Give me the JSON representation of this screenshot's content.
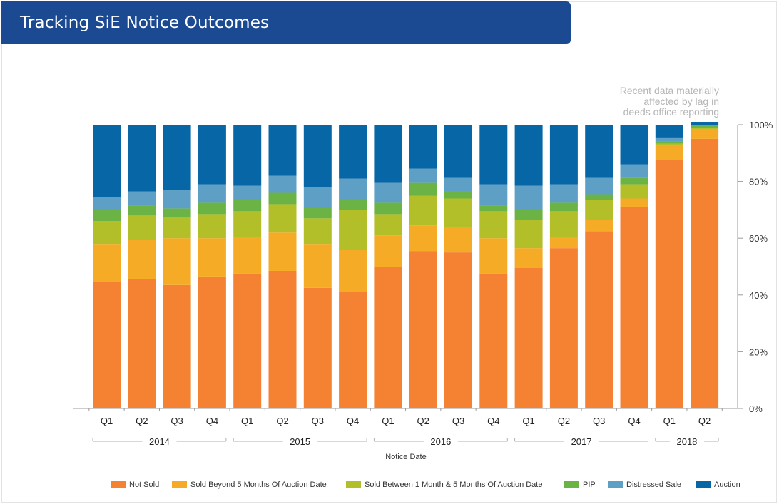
{
  "title": "Tracking SiE Notice Outcomes",
  "note_lines": [
    "Recent data materially",
    "affected by lag in",
    "deeds office reporting"
  ],
  "chart_data": {
    "type": "bar",
    "stacked": true,
    "title": "",
    "xlabel": "Notice Date",
    "ylabel": "",
    "ylim": [
      0,
      100
    ],
    "y_ticks": [
      "0%",
      "20%",
      "40%",
      "60%",
      "80%",
      "100%"
    ],
    "y_axis_side": "right",
    "categories": [
      "Q1",
      "Q2",
      "Q3",
      "Q4",
      "Q1",
      "Q2",
      "Q3",
      "Q4",
      "Q1",
      "Q2",
      "Q3",
      "Q4",
      "Q1",
      "Q2",
      "Q3",
      "Q4",
      "Q1",
      "Q2"
    ],
    "year_groups": [
      {
        "label": "2014",
        "count": 4
      },
      {
        "label": "2015",
        "count": 4
      },
      {
        "label": "2016",
        "count": 4
      },
      {
        "label": "2017",
        "count": 4
      },
      {
        "label": "2018",
        "count": 2
      }
    ],
    "series": [
      {
        "name": "Not Sold",
        "color": "#f58233",
        "values": [
          44.5,
          45.5,
          43.5,
          46.5,
          47.5,
          48.5,
          42.5,
          41,
          50,
          55.5,
          55,
          47.5,
          49.5,
          56.5,
          62.5,
          71,
          87.5,
          95
        ]
      },
      {
        "name": "Sold Beyond 5 Months Of Auction Date",
        "color": "#f5ab25",
        "values": [
          13.5,
          14,
          16.5,
          13.5,
          13,
          13.5,
          15.5,
          15,
          11,
          9,
          9,
          12.5,
          7,
          4,
          4,
          3,
          5,
          3.5
        ]
      },
      {
        "name": "Sold Between 1 Month & 5 Months Of Auction Date",
        "color": "#b2bf29",
        "values": [
          8,
          8.5,
          7.5,
          8.5,
          9,
          10,
          9,
          14,
          7.5,
          10.5,
          10,
          9.5,
          10,
          9,
          7,
          5,
          0.8,
          0.5
        ]
      },
      {
        "name": "PIP",
        "color": "#6bb344",
        "values": [
          4,
          3.5,
          3,
          4,
          4,
          4,
          4,
          3.5,
          4,
          4.5,
          2.5,
          2,
          3.5,
          3,
          2,
          2.5,
          0.7,
          0.5
        ]
      },
      {
        "name": "Distressed Sale",
        "color": "#5e9fc5",
        "values": [
          4.5,
          5,
          6.5,
          6.5,
          5,
          6,
          7,
          7.5,
          7,
          5,
          5,
          7.5,
          8.5,
          6.5,
          6,
          4.5,
          1.5,
          0.5
        ]
      },
      {
        "name": "Auction",
        "color": "#0766a6",
        "values": [
          25.5,
          23.5,
          23,
          21,
          21.5,
          18,
          22,
          19,
          20.5,
          15.5,
          18.5,
          21,
          21.5,
          21,
          18.5,
          14,
          4.5,
          1
        ]
      }
    ],
    "grid": false,
    "legend_position": "bottom"
  }
}
